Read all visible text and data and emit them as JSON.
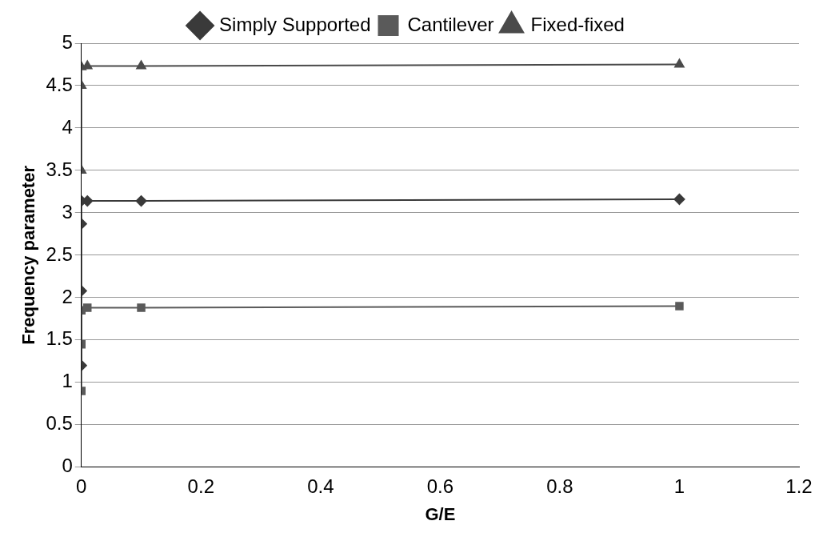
{
  "chart_data": {
    "type": "line",
    "xlabel": "G/E",
    "ylabel": "Frequency parameter",
    "xlim": [
      0,
      1.2
    ],
    "xticks": [
      0,
      0.2,
      0.4,
      0.6,
      0.8,
      1,
      1.2
    ],
    "ylim": [
      0,
      5
    ],
    "yticks": [
      0,
      0.5,
      1,
      1.5,
      2,
      2.5,
      3,
      3.5,
      4,
      4.5,
      5
    ],
    "grid": "y",
    "legend": "top",
    "line_style": "solid",
    "series": [
      {
        "name": "Simply Supported",
        "color": "#3a3a3a",
        "marker": "diamond",
        "x": [
          0,
          0,
          0,
          0,
          0.01,
          0.1,
          1
        ],
        "values": [
          1.2,
          2.08,
          2.87,
          3.14,
          3.14,
          3.14,
          3.16
        ]
      },
      {
        "name": "Cantilever",
        "color": "#5a5a5a",
        "marker": "square",
        "x": [
          0,
          0,
          0,
          0.01,
          0.1,
          1
        ],
        "values": [
          0.9,
          1.45,
          1.85,
          1.88,
          1.88,
          1.9
        ]
      },
      {
        "name": "Fixed-fixed",
        "color": "#4a4a4a",
        "marker": "triangle",
        "x": [
          0,
          0,
          0,
          0.01,
          0.1,
          1
        ],
        "values": [
          3.5,
          4.5,
          4.72,
          4.73,
          4.73,
          4.75
        ]
      }
    ]
  }
}
